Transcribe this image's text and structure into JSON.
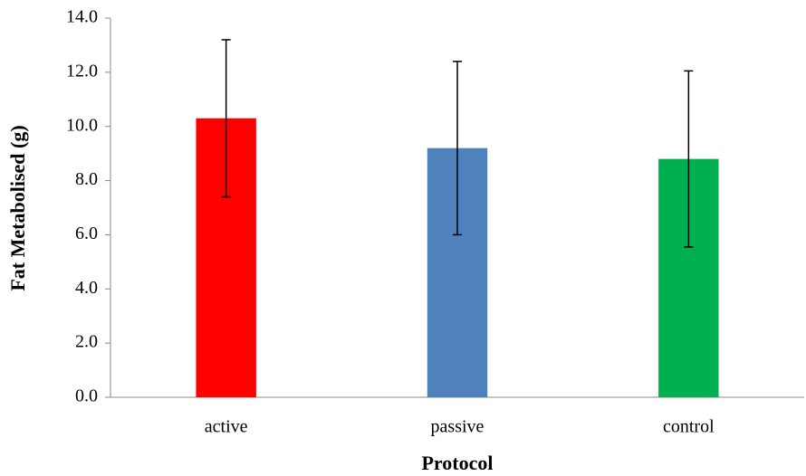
{
  "chart_data": {
    "type": "bar",
    "x_label": "Protocol",
    "y_label": "Fat Metabolised (g)",
    "categories": [
      "active",
      "passive",
      "control"
    ],
    "values": [
      10.3,
      9.2,
      8.8
    ],
    "errors": [
      2.9,
      3.2,
      3.25
    ],
    "colors": [
      "#ff0000",
      "#4f81bd",
      "#00b050"
    ],
    "ylim": [
      0,
      14
    ],
    "yticks": [
      {
        "value": 0,
        "label": "0.0"
      },
      {
        "value": 2,
        "label": "2.0"
      },
      {
        "value": 4,
        "label": "4.0"
      },
      {
        "value": 6,
        "label": "6.0"
      },
      {
        "value": 8,
        "label": "8.0"
      },
      {
        "value": 10,
        "label": "10.0"
      },
      {
        "value": 12,
        "label": "12.0"
      },
      {
        "value": 14,
        "label": "14.0"
      }
    ],
    "grid": false
  }
}
